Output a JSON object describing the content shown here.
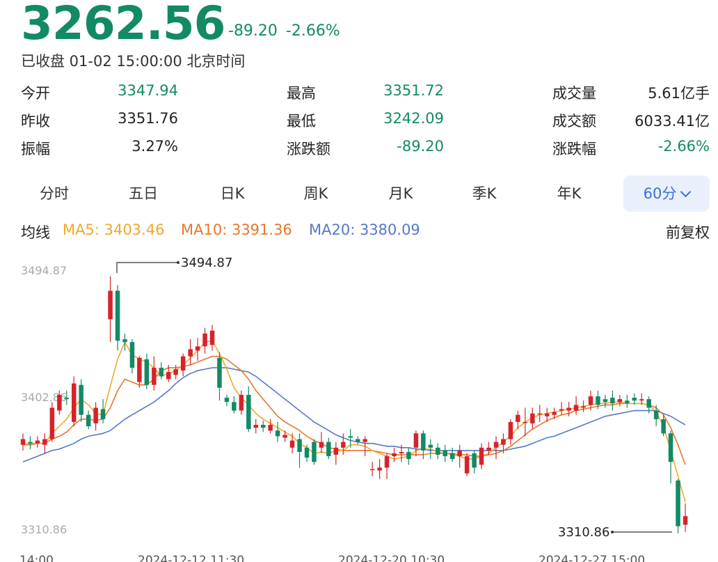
{
  "header": {
    "price": "3262.56",
    "change_points": "-89.20",
    "change_percent": "-2.66%",
    "status": "已收盘 01-02 15:00:00 北京时间"
  },
  "stats": [
    [
      {
        "label": "今开",
        "value": "3347.94",
        "color": "green"
      },
      {
        "label": "最高",
        "value": "3351.72",
        "color": "green"
      },
      {
        "label": "成交量",
        "value": "5.61亿手",
        "color": "neutral"
      }
    ],
    [
      {
        "label": "昨收",
        "value": "3351.76",
        "color": "neutral"
      },
      {
        "label": "最低",
        "value": "3242.09",
        "color": "green"
      },
      {
        "label": "成交额",
        "value": "6033.41亿",
        "color": "neutral"
      }
    ],
    [
      {
        "label": "振幅",
        "value": "3.27%",
        "color": "neutral"
      },
      {
        "label": "涨跌额",
        "value": "-89.20",
        "color": "green"
      },
      {
        "label": "涨跌幅",
        "value": "-2.66%",
        "color": "green"
      }
    ]
  ],
  "tabs": [
    "分时",
    "五日",
    "日K",
    "周K",
    "月K",
    "季K",
    "年K"
  ],
  "active_tab": "60分",
  "ma": {
    "label": "均线",
    "ma5": "MA5: 3403.46",
    "ma10": "MA10: 3391.36",
    "ma20": "MA20: 3380.09",
    "adjust": "前复权"
  },
  "colors": {
    "up": "#d6232b",
    "down": "#128a66",
    "ma5": "#f0a92a",
    "ma10": "#e8762d",
    "ma20": "#5578c8"
  },
  "chart_data": {
    "type": "candlestick",
    "ymax_label": "3494.87",
    "ymid_label": "3402.86",
    "ymin_label": "3310.86",
    "ylim": [
      3310.86,
      3494.87
    ],
    "high_callout": "3494.87",
    "low_callout": "3310.86",
    "x_labels": [
      "14:00",
      "2024-12-12 11:30",
      "2024-12-20 10:30",
      "2024-12-27 15:00"
    ],
    "candles": [
      [
        3372,
        3376,
        3368,
        3380
      ],
      [
        3374,
        3373,
        3369,
        3378
      ],
      [
        3373,
        3375,
        3370,
        3378
      ],
      [
        3372,
        3376,
        3366,
        3380
      ],
      [
        3376,
        3398,
        3374,
        3402
      ],
      [
        3396,
        3407,
        3393,
        3410
      ],
      [
        3405,
        3404,
        3400,
        3410
      ],
      [
        3388,
        3415,
        3385,
        3420
      ],
      [
        3414,
        3393,
        3388,
        3418
      ],
      [
        3393,
        3385,
        3383,
        3396
      ],
      [
        3387,
        3398,
        3382,
        3402
      ],
      [
        3397,
        3390,
        3387,
        3404
      ],
      [
        3460,
        3480,
        3444,
        3490
      ],
      [
        3480,
        3445,
        3438,
        3484
      ],
      [
        3446,
        3444,
        3438,
        3450
      ],
      [
        3444,
        3426,
        3422,
        3446
      ],
      [
        3416,
        3433,
        3412,
        3434
      ],
      [
        3432,
        3414,
        3411,
        3436
      ],
      [
        3414,
        3426,
        3410,
        3434
      ],
      [
        3426,
        3420,
        3418,
        3430
      ],
      [
        3418,
        3423,
        3416,
        3428
      ],
      [
        3421,
        3425,
        3418,
        3428
      ],
      [
        3424,
        3434,
        3420,
        3436
      ],
      [
        3434,
        3439,
        3428,
        3446
      ],
      [
        3438,
        3441,
        3431,
        3447
      ],
      [
        3441,
        3450,
        3436,
        3454
      ],
      [
        3442,
        3452,
        3438,
        3456
      ],
      [
        3433,
        3412,
        3403,
        3437
      ],
      [
        3405,
        3402,
        3399,
        3407
      ],
      [
        3402,
        3396,
        3394,
        3406
      ],
      [
        3396,
        3407,
        3393,
        3410
      ],
      [
        3407,
        3383,
        3381,
        3413
      ],
      [
        3384,
        3386,
        3380,
        3390
      ],
      [
        3386,
        3384,
        3381,
        3389
      ],
      [
        3382,
        3386,
        3380,
        3390
      ],
      [
        3382,
        3378,
        3374,
        3388
      ],
      [
        3377,
        3379,
        3374,
        3382
      ],
      [
        3370,
        3375,
        3366,
        3380
      ],
      [
        3376,
        3367,
        3356,
        3380
      ],
      [
        3370,
        3363,
        3360,
        3372
      ],
      [
        3374,
        3360,
        3358,
        3376
      ],
      [
        3370,
        3374,
        3366,
        3381
      ],
      [
        3374,
        3364,
        3362,
        3377
      ],
      [
        3365,
        3370,
        3358,
        3374
      ],
      [
        3370,
        3374,
        3365,
        3380
      ],
      [
        3378,
        3377,
        3370,
        3383
      ],
      [
        3376,
        3374,
        3372,
        3378
      ],
      [
        3374,
        3376,
        3364,
        3378
      ],
      [
        3355,
        3355,
        3350,
        3360
      ],
      [
        3354,
        3356,
        3348,
        3362
      ],
      [
        3356,
        3364,
        3348,
        3366
      ],
      [
        3364,
        3366,
        3360,
        3370
      ],
      [
        3366,
        3367,
        3360,
        3372
      ],
      [
        3367,
        3362,
        3358,
        3370
      ],
      [
        3370,
        3380,
        3364,
        3382
      ],
      [
        3380,
        3368,
        3362,
        3382
      ],
      [
        3372,
        3370,
        3362,
        3376
      ],
      [
        3370,
        3365,
        3362,
        3373
      ],
      [
        3368,
        3364,
        3360,
        3372
      ],
      [
        3366,
        3362,
        3360,
        3370
      ],
      [
        3364,
        3368,
        3356,
        3372
      ],
      [
        3352,
        3364,
        3350,
        3366
      ],
      [
        3366,
        3356,
        3352,
        3368
      ],
      [
        3358,
        3370,
        3355,
        3373
      ],
      [
        3368,
        3370,
        3365,
        3374
      ],
      [
        3370,
        3374,
        3362,
        3378
      ],
      [
        3372,
        3376,
        3366,
        3380
      ],
      [
        3376,
        3388,
        3372,
        3390
      ],
      [
        3388,
        3393,
        3383,
        3396
      ],
      [
        3388,
        3388,
        3378,
        3398
      ],
      [
        3387,
        3394,
        3383,
        3398
      ],
      [
        3394,
        3394,
        3388,
        3400
      ],
      [
        3392,
        3394,
        3388,
        3398
      ],
      [
        3393,
        3395,
        3390,
        3398
      ],
      [
        3396,
        3397,
        3393,
        3402
      ],
      [
        3396,
        3398,
        3392,
        3402
      ],
      [
        3396,
        3400,
        3393,
        3406
      ],
      [
        3398,
        3399,
        3395,
        3403
      ],
      [
        3400,
        3406,
        3396,
        3410
      ],
      [
        3406,
        3400,
        3397,
        3410
      ],
      [
        3404,
        3402,
        3398,
        3407
      ],
      [
        3405,
        3401,
        3396,
        3410
      ],
      [
        3402,
        3404,
        3399,
        3407
      ],
      [
        3403,
        3401,
        3398,
        3407
      ],
      [
        3405,
        3403,
        3400,
        3408
      ],
      [
        3403,
        3404,
        3400,
        3408
      ],
      [
        3404,
        3398,
        3394,
        3406
      ],
      [
        3396,
        3390,
        3385,
        3400
      ],
      [
        3390,
        3380,
        3378,
        3393
      ],
      [
        3380,
        3360,
        3345,
        3382
      ],
      [
        3347,
        3315,
        3310,
        3348
      ],
      [
        3316,
        3322,
        3311,
        3331
      ]
    ],
    "ma5": [
      3372,
      3373,
      3373,
      3373,
      3380,
      3385,
      3390,
      3398,
      3404,
      3400,
      3394,
      3393,
      3413,
      3432,
      3444,
      3435,
      3432,
      3430,
      3426,
      3420,
      3422,
      3424,
      3428,
      3433,
      3438,
      3444,
      3445,
      3436,
      3425,
      3412,
      3405,
      3400,
      3394,
      3390,
      3387,
      3384,
      3381,
      3378,
      3373,
      3370,
      3366,
      3367,
      3366,
      3368,
      3368,
      3372,
      3372,
      3371,
      3368,
      3366,
      3364,
      3362,
      3363,
      3364,
      3368,
      3369,
      3369,
      3367,
      3366,
      3365,
      3364,
      3362,
      3362,
      3364,
      3366,
      3370,
      3374,
      3378,
      3384,
      3388,
      3391,
      3393,
      3394,
      3395,
      3396,
      3397,
      3398,
      3399,
      3400,
      3401,
      3401,
      3402,
      3402,
      3401,
      3401,
      3401,
      3400,
      3395,
      3385,
      3368,
      3350,
      3332
    ],
    "ma10": [
      3372,
      3372,
      3373,
      3373,
      3376,
      3378,
      3381,
      3386,
      3390,
      3390,
      3389,
      3390,
      3398,
      3410,
      3418,
      3416,
      3414,
      3414,
      3418,
      3424,
      3426,
      3426,
      3427,
      3428,
      3430,
      3432,
      3434,
      3434,
      3432,
      3428,
      3424,
      3418,
      3410,
      3404,
      3398,
      3392,
      3388,
      3385,
      3382,
      3378,
      3375,
      3373,
      3370,
      3369,
      3368,
      3368,
      3368,
      3368,
      3368,
      3367,
      3366,
      3365,
      3365,
      3365,
      3365,
      3365,
      3366,
      3366,
      3366,
      3366,
      3365,
      3365,
      3364,
      3364,
      3365,
      3366,
      3368,
      3371,
      3375,
      3379,
      3383,
      3386,
      3389,
      3391,
      3393,
      3394,
      3396,
      3397,
      3398,
      3399,
      3400,
      3400,
      3401,
      3401,
      3401,
      3401,
      3400,
      3398,
      3393,
      3384,
      3372,
      3358
    ],
    "ma20": [
      3360,
      3362,
      3364,
      3366,
      3368,
      3369,
      3371,
      3373,
      3376,
      3378,
      3379,
      3380,
      3382,
      3386,
      3390,
      3393,
      3396,
      3399,
      3402,
      3406,
      3410,
      3415,
      3419,
      3422,
      3424,
      3425,
      3426,
      3426,
      3426,
      3425,
      3424,
      3423,
      3420,
      3416,
      3412,
      3408,
      3404,
      3400,
      3396,
      3392,
      3388,
      3385,
      3382,
      3379,
      3377,
      3375,
      3374,
      3373,
      3373,
      3372,
      3371,
      3371,
      3370,
      3370,
      3369,
      3369,
      3368,
      3368,
      3368,
      3368,
      3368,
      3368,
      3368,
      3368,
      3368,
      3368,
      3368,
      3369,
      3370,
      3371,
      3373,
      3375,
      3377,
      3378,
      3380,
      3382,
      3384,
      3386,
      3388,
      3390,
      3392,
      3393,
      3394,
      3395,
      3396,
      3396,
      3396,
      3396,
      3394,
      3392,
      3389,
      3386
    ]
  }
}
